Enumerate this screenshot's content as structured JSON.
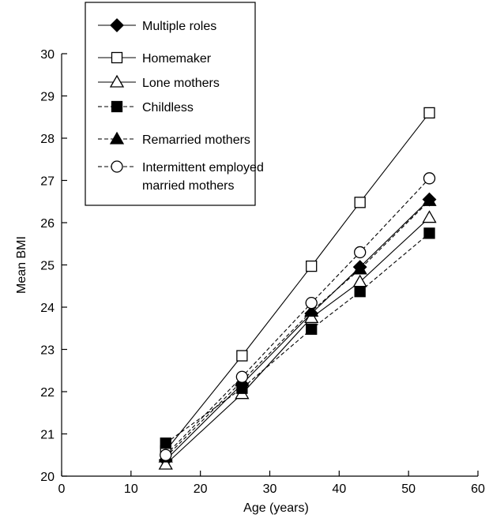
{
  "chart_data": {
    "type": "line",
    "xlabel": "Age (years)",
    "ylabel": "Mean BMI",
    "xlim": [
      0,
      60
    ],
    "ylim": [
      20,
      30
    ],
    "xticks": [
      0,
      10,
      20,
      30,
      40,
      50,
      60
    ],
    "yticks": [
      20,
      21,
      22,
      23,
      24,
      25,
      26,
      27,
      28,
      29,
      30
    ],
    "grid": false,
    "legend_position": "top-left",
    "x": [
      15,
      26,
      36,
      43,
      53
    ],
    "series": [
      {
        "name": "Multiple roles",
        "marker": "diamond",
        "filled": true,
        "dashed": false,
        "values": [
          20.38,
          22.18,
          23.85,
          24.95,
          26.55
        ]
      },
      {
        "name": "Homemaker",
        "marker": "square",
        "filled": false,
        "dashed": false,
        "values": [
          20.6,
          22.85,
          24.97,
          26.48,
          28.6
        ]
      },
      {
        "name": "Lone mothers",
        "marker": "triangle",
        "filled": false,
        "dashed": false,
        "values": [
          20.28,
          21.95,
          23.75,
          24.6,
          26.12
        ]
      },
      {
        "name": "Childless",
        "marker": "square",
        "filled": true,
        "dashed": true,
        "values": [
          20.78,
          22.08,
          23.48,
          24.37,
          25.75
        ]
      },
      {
        "name": "Remarried mothers",
        "marker": "triangle",
        "filled": true,
        "dashed": true,
        "values": [
          20.45,
          22.25,
          23.9,
          24.9,
          26.52
        ]
      },
      {
        "name": "Intermittent employed married mothers",
        "legend_lines": [
          "Intermittent employed",
          "married mothers"
        ],
        "marker": "circle",
        "filled": false,
        "dashed": true,
        "values": [
          20.5,
          22.35,
          24.1,
          25.3,
          27.05
        ]
      }
    ]
  }
}
